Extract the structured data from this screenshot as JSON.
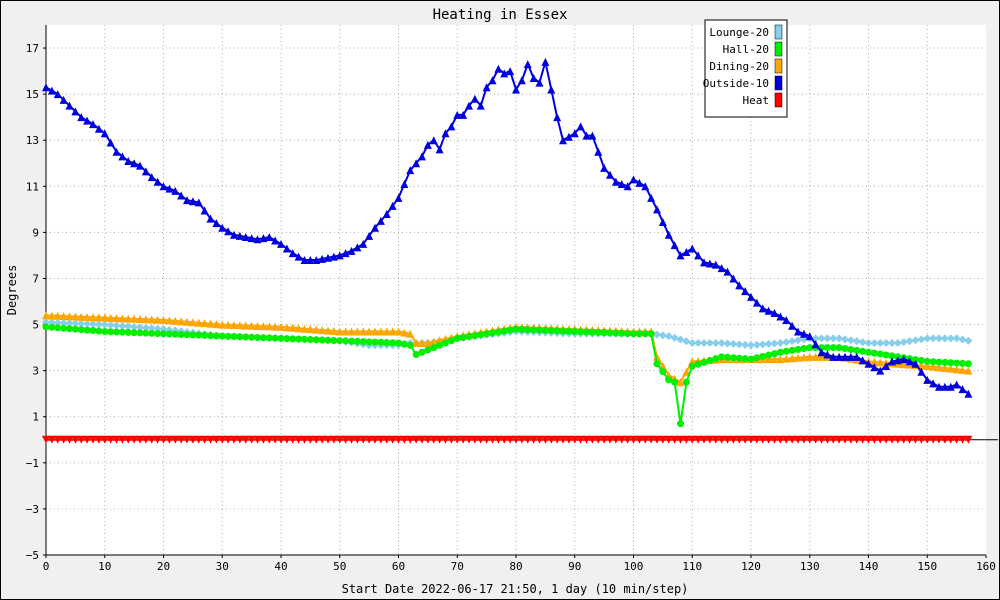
{
  "chart_data": {
    "type": "line",
    "title": "Heating in Essex",
    "xlabel": "Start Date 2022-06-17 21:50, 1 day (10 min/step)",
    "ylabel": "Degrees",
    "xlim": [
      0,
      160
    ],
    "ylim": [
      -5,
      18
    ],
    "xticks": [
      0,
      10,
      20,
      30,
      40,
      50,
      60,
      70,
      80,
      90,
      100,
      110,
      120,
      130,
      140,
      150,
      160
    ],
    "yticks": [
      -5,
      -3,
      -1,
      1,
      3,
      5,
      7,
      9,
      11,
      13,
      15,
      17
    ],
    "grid": true,
    "legend_position": "top-right",
    "series": [
      {
        "name": "Lounge-20",
        "color": "#87ceeb",
        "marker": "diamond",
        "points": [
          [
            0,
            5.1
          ],
          [
            10,
            5.0
          ],
          [
            20,
            4.8
          ],
          [
            30,
            4.5
          ],
          [
            40,
            4.4
          ],
          [
            50,
            4.3
          ],
          [
            55,
            4.1
          ],
          [
            60,
            4.1
          ],
          [
            62,
            4.2
          ],
          [
            65,
            4.2
          ],
          [
            70,
            4.4
          ],
          [
            80,
            4.7
          ],
          [
            90,
            4.6
          ],
          [
            100,
            4.6
          ],
          [
            103,
            4.6
          ],
          [
            106,
            4.5
          ],
          [
            110,
            4.2
          ],
          [
            115,
            4.2
          ],
          [
            120,
            4.1
          ],
          [
            125,
            4.2
          ],
          [
            130,
            4.4
          ],
          [
            135,
            4.4
          ],
          [
            140,
            4.2
          ],
          [
            145,
            4.2
          ],
          [
            150,
            4.4
          ],
          [
            155,
            4.4
          ],
          [
            157,
            4.3
          ]
        ]
      },
      {
        "name": "Hall-20",
        "color": "#00ee00",
        "marker": "circle",
        "points": [
          [
            0,
            4.9
          ],
          [
            10,
            4.7
          ],
          [
            20,
            4.6
          ],
          [
            30,
            4.5
          ],
          [
            40,
            4.4
          ],
          [
            50,
            4.3
          ],
          [
            60,
            4.2
          ],
          [
            62,
            4.1
          ],
          [
            63,
            3.7
          ],
          [
            65,
            3.9
          ],
          [
            70,
            4.4
          ],
          [
            80,
            4.8
          ],
          [
            90,
            4.7
          ],
          [
            100,
            4.6
          ],
          [
            103,
            4.6
          ],
          [
            104,
            3.3
          ],
          [
            106,
            2.6
          ],
          [
            107,
            2.5
          ],
          [
            108,
            0.7
          ],
          [
            109,
            2.5
          ],
          [
            110,
            3.2
          ],
          [
            115,
            3.6
          ],
          [
            120,
            3.5
          ],
          [
            125,
            3.8
          ],
          [
            130,
            4.0
          ],
          [
            135,
            4.0
          ],
          [
            140,
            3.8
          ],
          [
            145,
            3.6
          ],
          [
            150,
            3.4
          ],
          [
            157,
            3.3
          ]
        ]
      },
      {
        "name": "Dining-20",
        "color": "#ffa500",
        "marker": "triangle",
        "points": [
          [
            0,
            5.4
          ],
          [
            10,
            5.3
          ],
          [
            20,
            5.2
          ],
          [
            30,
            5.0
          ],
          [
            40,
            4.9
          ],
          [
            50,
            4.7
          ],
          [
            60,
            4.7
          ],
          [
            62,
            4.6
          ],
          [
            63,
            4.2
          ],
          [
            65,
            4.2
          ],
          [
            70,
            4.5
          ],
          [
            80,
            4.9
          ],
          [
            90,
            4.8
          ],
          [
            100,
            4.7
          ],
          [
            103,
            4.7
          ],
          [
            104,
            3.6
          ],
          [
            106,
            2.8
          ],
          [
            108,
            2.5
          ],
          [
            110,
            3.4
          ],
          [
            115,
            3.5
          ],
          [
            120,
            3.5
          ],
          [
            125,
            3.5
          ],
          [
            130,
            3.6
          ],
          [
            135,
            3.6
          ],
          [
            140,
            3.4
          ],
          [
            145,
            3.3
          ],
          [
            150,
            3.2
          ],
          [
            157,
            3.0
          ]
        ]
      },
      {
        "name": "Outside-10",
        "color": "#0000dd",
        "marker": "triangle",
        "points": [
          [
            0,
            15.3
          ],
          [
            2,
            15.0
          ],
          [
            4,
            14.5
          ],
          [
            6,
            14.0
          ],
          [
            8,
            13.7
          ],
          [
            10,
            13.3
          ],
          [
            12,
            12.5
          ],
          [
            14,
            12.1
          ],
          [
            16,
            11.9
          ],
          [
            18,
            11.4
          ],
          [
            20,
            11.0
          ],
          [
            22,
            10.8
          ],
          [
            24,
            10.4
          ],
          [
            26,
            10.3
          ],
          [
            28,
            9.6
          ],
          [
            30,
            9.2
          ],
          [
            32,
            8.9
          ],
          [
            34,
            8.8
          ],
          [
            36,
            8.7
          ],
          [
            38,
            8.8
          ],
          [
            40,
            8.5
          ],
          [
            42,
            8.1
          ],
          [
            44,
            7.8
          ],
          [
            46,
            7.8
          ],
          [
            48,
            7.9
          ],
          [
            50,
            8.0
          ],
          [
            52,
            8.2
          ],
          [
            54,
            8.5
          ],
          [
            56,
            9.2
          ],
          [
            58,
            9.8
          ],
          [
            60,
            10.5
          ],
          [
            62,
            11.7
          ],
          [
            64,
            12.3
          ],
          [
            65,
            12.8
          ],
          [
            66,
            13.0
          ],
          [
            67,
            12.6
          ],
          [
            68,
            13.3
          ],
          [
            69,
            13.6
          ],
          [
            70,
            14.1
          ],
          [
            71,
            14.1
          ],
          [
            72,
            14.5
          ],
          [
            73,
            14.8
          ],
          [
            74,
            14.5
          ],
          [
            75,
            15.3
          ],
          [
            76,
            15.6
          ],
          [
            77,
            16.1
          ],
          [
            78,
            15.9
          ],
          [
            79,
            16.0
          ],
          [
            80,
            15.2
          ],
          [
            81,
            15.6
          ],
          [
            82,
            16.3
          ],
          [
            83,
            15.7
          ],
          [
            84,
            15.5
          ],
          [
            85,
            16.4
          ],
          [
            86,
            15.2
          ],
          [
            87,
            14.0
          ],
          [
            88,
            13.0
          ],
          [
            90,
            13.3
          ],
          [
            91,
            13.6
          ],
          [
            92,
            13.2
          ],
          [
            93,
            13.2
          ],
          [
            95,
            11.8
          ],
          [
            97,
            11.2
          ],
          [
            99,
            11.0
          ],
          [
            100,
            11.3
          ],
          [
            102,
            11.0
          ],
          [
            104,
            10.0
          ],
          [
            106,
            8.9
          ],
          [
            108,
            8.0
          ],
          [
            110,
            8.3
          ],
          [
            112,
            7.7
          ],
          [
            114,
            7.6
          ],
          [
            116,
            7.3
          ],
          [
            118,
            6.7
          ],
          [
            120,
            6.2
          ],
          [
            122,
            5.7
          ],
          [
            124,
            5.5
          ],
          [
            126,
            5.2
          ],
          [
            128,
            4.7
          ],
          [
            130,
            4.5
          ],
          [
            132,
            3.8
          ],
          [
            134,
            3.6
          ],
          [
            136,
            3.6
          ],
          [
            138,
            3.6
          ],
          [
            140,
            3.3
          ],
          [
            142,
            3.0
          ],
          [
            144,
            3.4
          ],
          [
            146,
            3.5
          ],
          [
            148,
            3.3
          ],
          [
            150,
            2.6
          ],
          [
            152,
            2.3
          ],
          [
            154,
            2.3
          ],
          [
            155,
            2.4
          ],
          [
            157,
            2.0
          ]
        ]
      },
      {
        "name": "Heat",
        "color": "#ff0000",
        "marker": "triangle-down",
        "points": [
          [
            0,
            0.0
          ],
          [
            157,
            0.0
          ]
        ]
      }
    ]
  }
}
